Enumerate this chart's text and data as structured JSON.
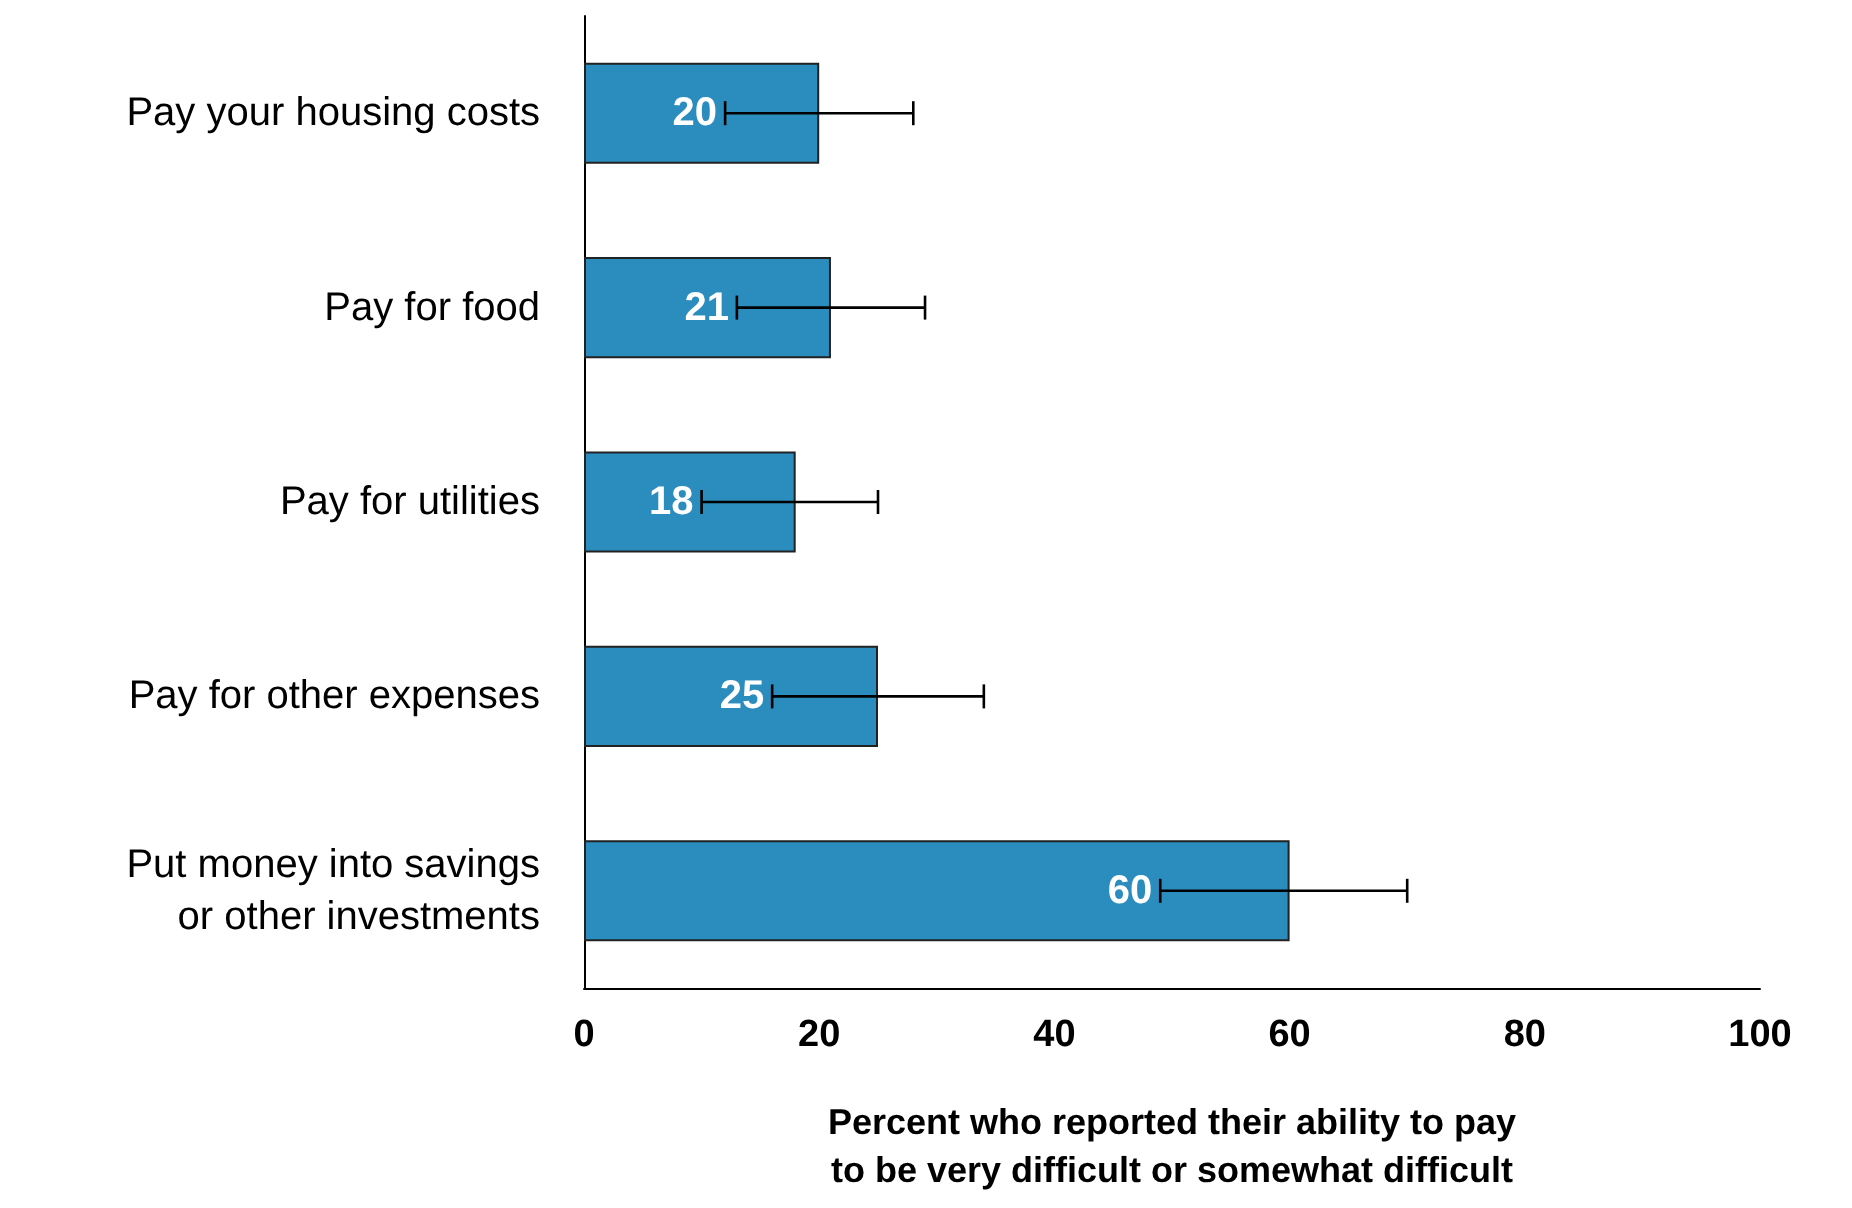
{
  "chart_data": {
    "type": "bar",
    "orientation": "horizontal",
    "xlabel": "Percent who reported their ability to pay\nto be very difficult or somewhat difficult",
    "categories": [
      "Pay your housing costs",
      "Pay for food",
      "Pay for utilities",
      "Pay for other expenses",
      "Put money into savings\nor other investments"
    ],
    "values": [
      20,
      21,
      18,
      25,
      60
    ],
    "color": "#2b8cbe",
    "errors": [
      [
        12,
        28
      ],
      [
        13,
        29
      ],
      [
        10,
        25
      ],
      [
        16,
        34
      ],
      [
        49,
        70
      ]
    ],
    "xlim": [
      0,
      100
    ],
    "xticks": [
      0,
      20,
      40,
      60,
      80,
      100
    ],
    "grid": false,
    "data_labels": true
  }
}
